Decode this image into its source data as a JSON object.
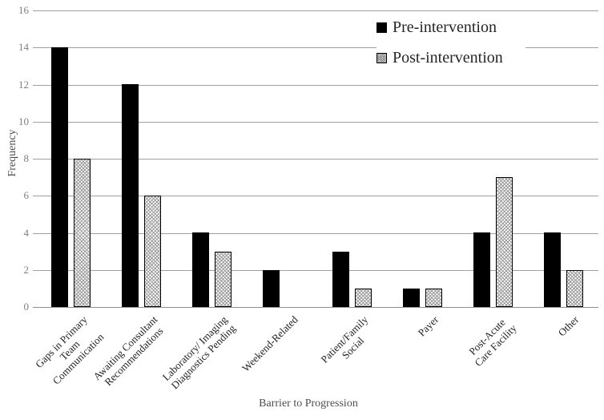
{
  "chart_data": {
    "type": "bar",
    "title": "",
    "xlabel": "Barrier to Progression",
    "ylabel": "Frequency",
    "ylim": [
      0,
      16
    ],
    "yticks": [
      0,
      2,
      4,
      6,
      8,
      10,
      12,
      14,
      16
    ],
    "grid": true,
    "legend_position": "top-right",
    "categories": [
      "Gaps in Primary\nTeam\nCommunication",
      "Awaiting Consultant\nRecommendations",
      "Laboratory/ Imaging\nDiagnostics Pending",
      "Weekend-Related",
      "Patient/Family\nSocial",
      "Payer",
      "Post-Acute\nCare Facility",
      "Other"
    ],
    "series": [
      {
        "name": "Pre-intervention",
        "values": [
          14,
          12,
          4,
          2,
          3,
          1,
          4,
          4
        ],
        "color": "#000000",
        "pattern": "solid"
      },
      {
        "name": "Post-intervention",
        "values": [
          8,
          6,
          3,
          0,
          1,
          1,
          7,
          2
        ],
        "color": "#d9d9d9",
        "pattern": "diagonal-crosshatch",
        "border_color": "#000000"
      }
    ]
  },
  "colors": {
    "background": "#ffffff",
    "gridline": "#a1a1a1",
    "axis_line": "#8f8f8f",
    "tick_label": "#7f7f7f",
    "category_label": "#1f1f1f",
    "axis_title": "#4d4d4d",
    "legend_text": "#262626"
  }
}
